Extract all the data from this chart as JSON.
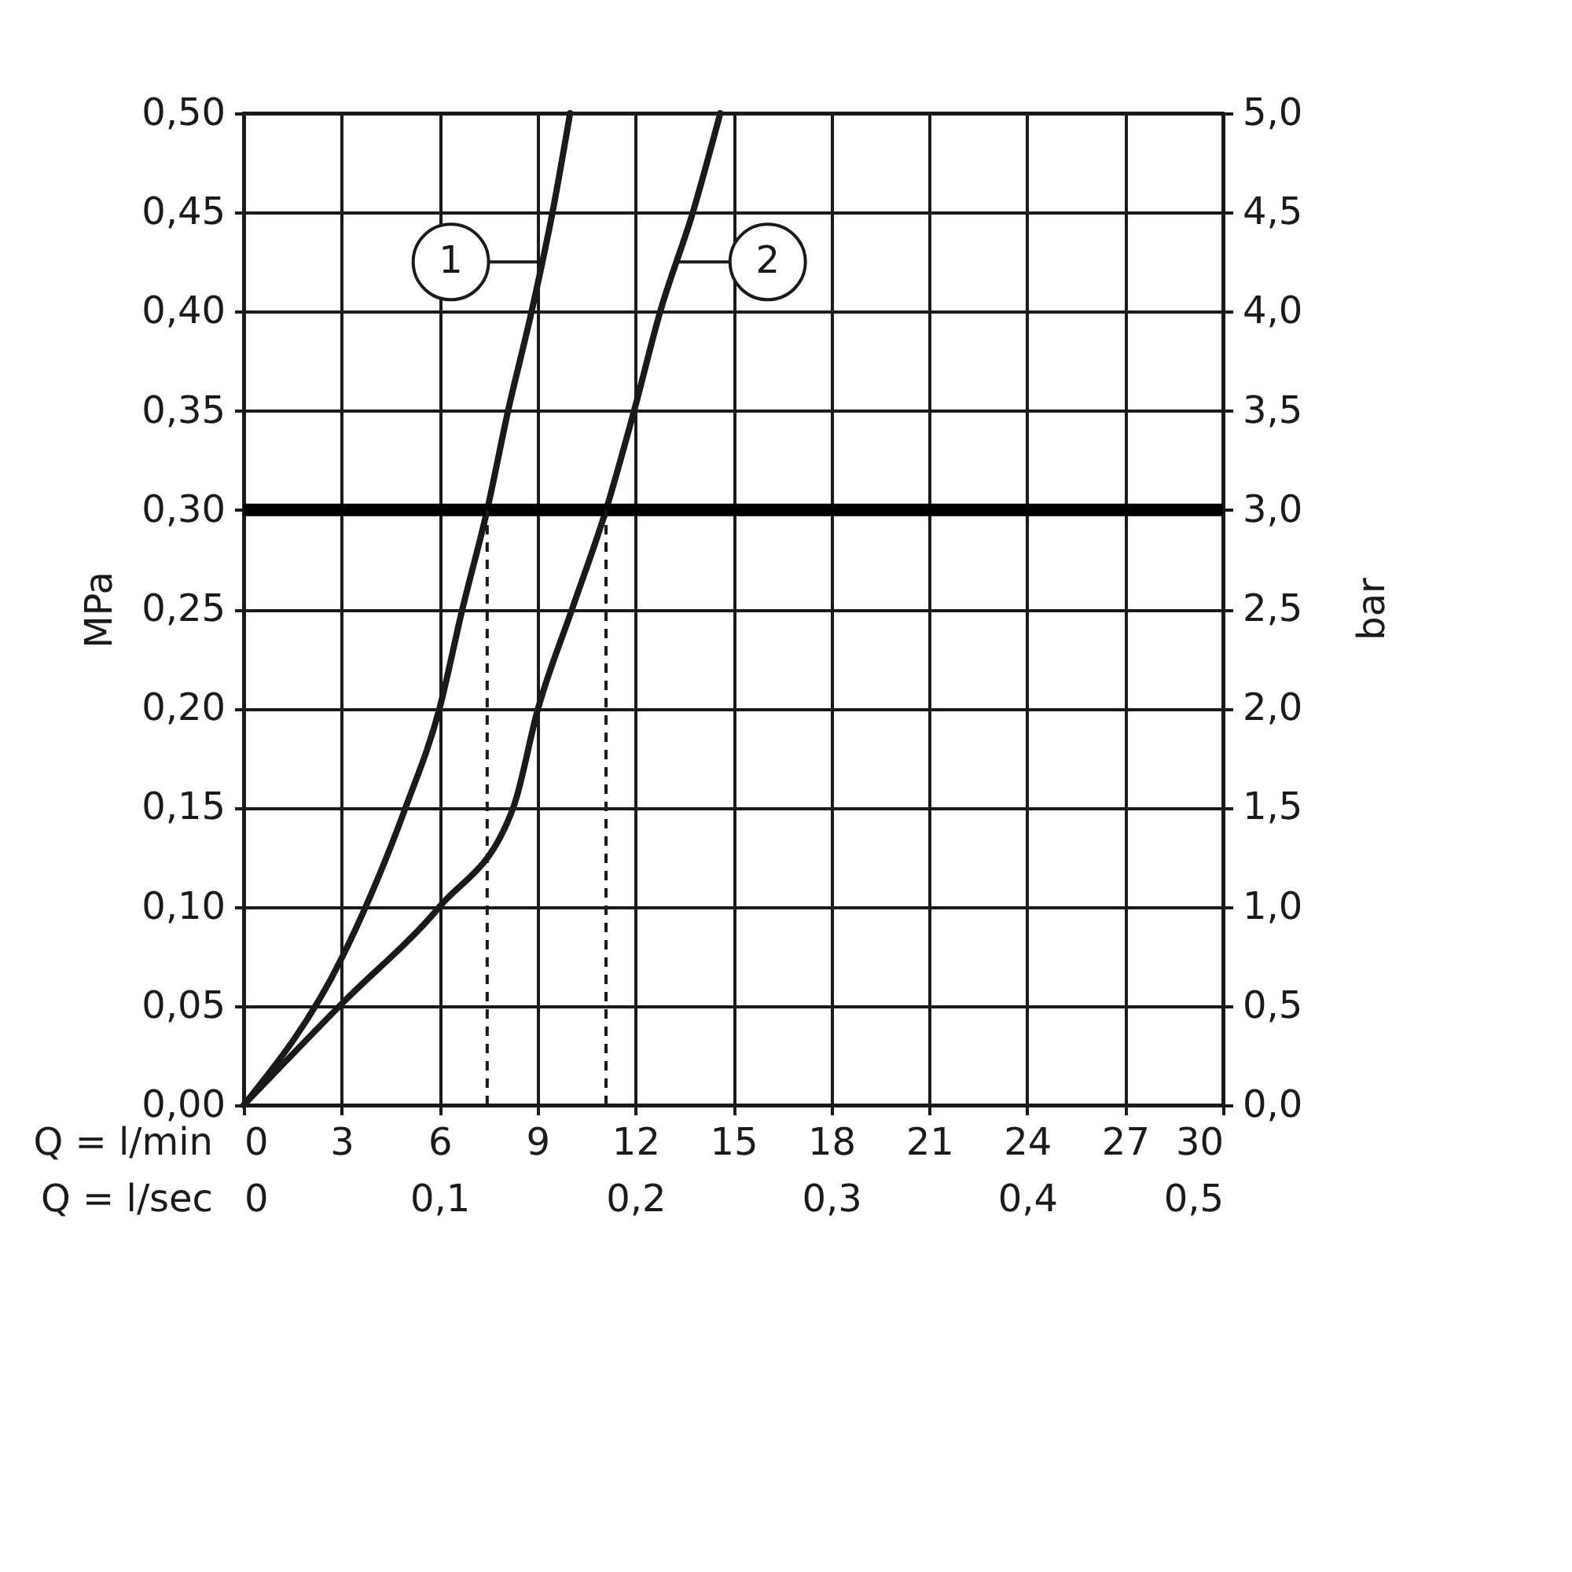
{
  "chart_data": {
    "type": "line",
    "xlabel": "Q = l/min",
    "x2label": "Q = l/sec",
    "ylabel": "MPa",
    "y2label": "bar",
    "xlim": [
      0,
      30
    ],
    "xticks": [
      0,
      3,
      6,
      9,
      12,
      15,
      18,
      21,
      24,
      27,
      30
    ],
    "x2lim": [
      0,
      0.5
    ],
    "x2ticks": [
      0,
      {
        "value": 0.1,
        "label": "0,1"
      },
      {
        "value": 0.2,
        "label": "0,2"
      },
      {
        "value": 0.3,
        "label": "0,3"
      },
      {
        "value": 0.4,
        "label": "0,4"
      },
      {
        "value": 0.5,
        "label": "0,5"
      }
    ],
    "ylim": [
      0,
      0.5
    ],
    "yticks": [
      {
        "value": 0,
        "label": "0,00"
      },
      {
        "value": 0.05,
        "label": "0,05"
      },
      {
        "value": 0.1,
        "label": "0,10"
      },
      {
        "value": 0.15,
        "label": "0,15"
      },
      {
        "value": 0.2,
        "label": "0,20"
      },
      {
        "value": 0.25,
        "label": "0,25"
      },
      {
        "value": 0.3,
        "label": "0,30"
      },
      {
        "value": 0.35,
        "label": "0,35"
      },
      {
        "value": 0.4,
        "label": "0,40"
      },
      {
        "value": 0.45,
        "label": "0,45"
      },
      {
        "value": 0.5,
        "label": "0,50"
      }
    ],
    "y2lim": [
      0,
      5
    ],
    "y2ticks": [
      {
        "value": 0,
        "label": "0,0"
      },
      {
        "value": 0.5,
        "label": "0,5"
      },
      {
        "value": 1,
        "label": "1,0"
      },
      {
        "value": 1.5,
        "label": "1,5"
      },
      {
        "value": 2,
        "label": "2,0"
      },
      {
        "value": 2.5,
        "label": "2,5"
      },
      {
        "value": 3,
        "label": "3,0"
      },
      {
        "value": 3.5,
        "label": "3,5"
      },
      {
        "value": 4,
        "label": "4,0"
      },
      {
        "value": 4.5,
        "label": "4,5"
      },
      {
        "value": 5,
        "label": "5,0"
      }
    ],
    "grid": true,
    "marker": "none",
    "line_style": "solid",
    "series": [
      {
        "name": "1",
        "color": "#1a1a1a",
        "x": [
          0,
          3,
          4.96,
          6.0,
          6.7,
          7.46,
          8.1,
          8.82,
          9.46,
          10.0
        ],
        "values": [
          0,
          0.074,
          0.15,
          0.2,
          0.25,
          0.3,
          0.35,
          0.4,
          0.45,
          0.5
        ]
      },
      {
        "name": "2",
        "color": "#1a1a1a",
        "x": [
          0,
          3,
          6,
          8.26,
          9.02,
          10.06,
          11.1,
          11.96,
          12.76,
          13.76,
          14.6
        ],
        "values": [
          0,
          0.051,
          0.1,
          0.15,
          0.2,
          0.25,
          0.3,
          0.35,
          0.4,
          0.45,
          0.5
        ]
      }
    ],
    "ref_lines": [
      {
        "axis": "y",
        "value": 0.3,
        "color": "#000000",
        "line_style": "solid"
      },
      {
        "axis": "x",
        "value": 7.46,
        "color": "#1a1a1a",
        "line_style": "dashed"
      },
      {
        "axis": "x",
        "value": 11.1,
        "color": "#1a1a1a",
        "line_style": "dashed"
      }
    ]
  }
}
